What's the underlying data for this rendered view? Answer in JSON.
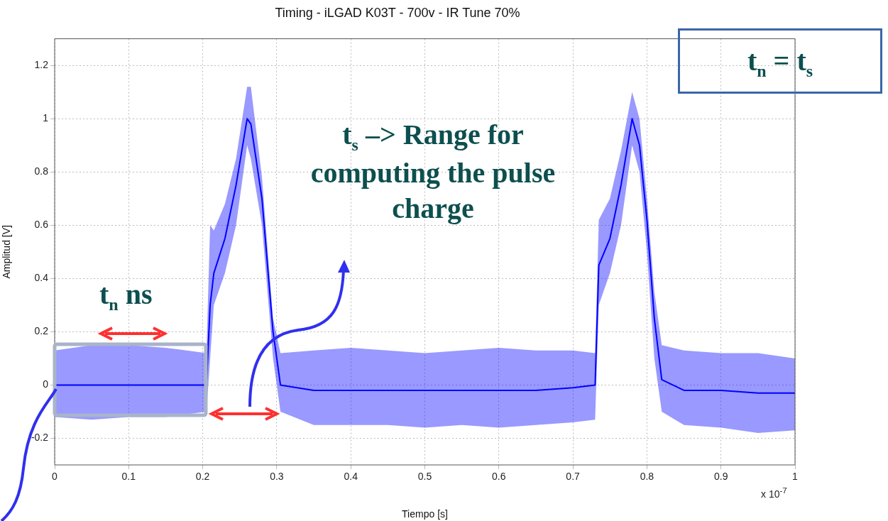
{
  "chart_data": {
    "type": "line",
    "title": "Timing - iLGAD K03T - 700v - IR Tune 70%",
    "xlabel": "Tiempo [s]",
    "ylabel": "Amplitud [V]",
    "x": [
      0,
      0.05,
      0.1,
      0.15,
      0.205,
      0.21,
      0.215,
      0.23,
      0.245,
      0.26,
      0.265,
      0.28,
      0.295,
      0.305,
      0.35,
      0.4,
      0.45,
      0.5,
      0.55,
      0.6,
      0.65,
      0.7,
      0.73,
      0.735,
      0.75,
      0.765,
      0.78,
      0.79,
      0.8,
      0.81,
      0.82,
      0.85,
      0.9,
      0.95,
      1
    ],
    "series": [
      {
        "color": "#0000ff",
        "values": [
          0,
          0,
          0,
          0,
          0,
          0.3,
          0.42,
          0.55,
          0.75,
          1.0,
          0.98,
          0.7,
          0.2,
          0,
          -0.02,
          -0.02,
          -0.02,
          -0.02,
          -0.02,
          -0.02,
          -0.02,
          -0.01,
          0,
          0.45,
          0.55,
          0.75,
          1.0,
          0.9,
          0.62,
          0.25,
          0.02,
          -0.02,
          -0.02,
          -0.03,
          -0.03
        ],
        "lower": [
          -0.12,
          -0.13,
          -0.12,
          -0.12,
          -0.1,
          0.1,
          0.3,
          0.42,
          0.6,
          0.9,
          0.85,
          0.6,
          0.1,
          -0.1,
          -0.15,
          -0.15,
          -0.15,
          -0.16,
          -0.15,
          -0.16,
          -0.15,
          -0.14,
          -0.13,
          0.3,
          0.42,
          0.6,
          0.9,
          0.8,
          0.5,
          0.1,
          -0.1,
          -0.15,
          -0.16,
          -0.18,
          -0.17
        ],
        "upper": [
          0.13,
          0.15,
          0.15,
          0.14,
          0.12,
          0.6,
          0.58,
          0.68,
          0.85,
          1.12,
          1.12,
          0.78,
          0.25,
          0.12,
          0.13,
          0.14,
          0.13,
          0.12,
          0.13,
          0.14,
          0.13,
          0.13,
          0.12,
          0.62,
          0.7,
          0.88,
          1.1,
          1.0,
          0.7,
          0.35,
          0.15,
          0.13,
          0.12,
          0.12,
          0.1
        ]
      }
    ],
    "xlim": [
      0,
      1
    ],
    "ylim": [
      -0.3,
      1.3
    ],
    "xticks": [
      0,
      0.1,
      0.2,
      0.3,
      0.4,
      0.5,
      0.6,
      0.7,
      0.8,
      0.9,
      1
    ],
    "yticks": [
      -0.2,
      0,
      0.2,
      0.4,
      0.6,
      0.8,
      1,
      1.2
    ],
    "grid": true,
    "marker": "none",
    "annotations": [
      "t$_{n}$ = t$_{s}$",
      "t$_{s}$ –> Range for computing the pulse charge",
      "t$_{n}$ ns",
      "x 10$^{-7}$"
    ]
  }
}
